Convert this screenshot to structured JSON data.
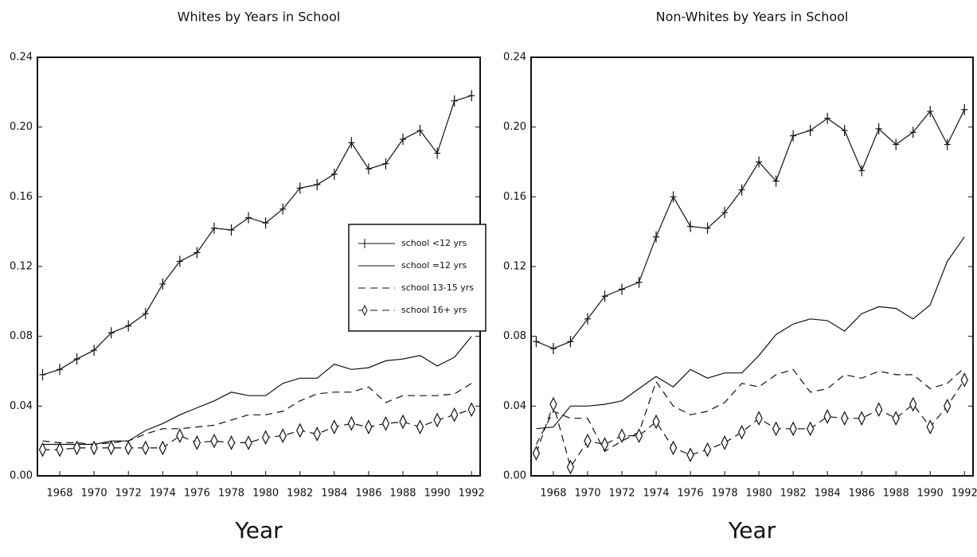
{
  "chart_data": [
    {
      "type": "line",
      "title": "Whites by Years in School",
      "x_label": "Year",
      "x": [
        1967,
        1968,
        1969,
        1970,
        1971,
        1972,
        1973,
        1974,
        1975,
        1976,
        1977,
        1978,
        1979,
        1980,
        1981,
        1982,
        1983,
        1984,
        1985,
        1986,
        1987,
        1988,
        1989,
        1990,
        1991,
        1992
      ],
      "xlim": [
        1966.7,
        1992.5
      ],
      "xticks": [
        1968,
        1970,
        1972,
        1974,
        1976,
        1978,
        1980,
        1982,
        1984,
        1986,
        1988,
        1990,
        1992
      ],
      "ylim": [
        0,
        0.24
      ],
      "yticks": [
        {
          "value": 0,
          "label": "0.00"
        },
        0.04,
        0.08,
        0.12,
        0.16,
        {
          "value": 0.2,
          "label": "0.20"
        },
        0.24
      ],
      "legend": "right",
      "series": [
        {
          "name": "school <12 yrs",
          "color": "#111111",
          "marker": "plus",
          "dash": "solid",
          "values": [
            0.058,
            0.061,
            0.067,
            0.072,
            0.082,
            0.086,
            0.093,
            0.11,
            0.123,
            0.128,
            0.142,
            0.141,
            0.148,
            0.145,
            0.153,
            0.165,
            0.167,
            0.173,
            0.191,
            0.176,
            0.179,
            0.193,
            0.198,
            0.185,
            0.215,
            0.218
          ]
        },
        {
          "name": "school =12 yrs",
          "color": "#111111",
          "marker": "none",
          "dash": "solid",
          "values": [
            0.018,
            0.018,
            0.018,
            0.018,
            0.02,
            0.02,
            0.026,
            0.03,
            0.035,
            0.039,
            0.043,
            0.048,
            0.046,
            0.046,
            0.053,
            0.056,
            0.056,
            0.064,
            0.061,
            0.062,
            0.066,
            0.067,
            0.069,
            0.063,
            0.068,
            0.08
          ]
        },
        {
          "name": "school 13-15 yrs",
          "color": "#111111",
          "marker": "none",
          "dash": "dashed",
          "values": [
            0.02,
            0.019,
            0.019,
            0.018,
            0.019,
            0.02,
            0.024,
            0.027,
            0.027,
            0.028,
            0.029,
            0.032,
            0.035,
            0.035,
            0.037,
            0.043,
            0.047,
            0.048,
            0.048,
            0.051,
            0.042,
            0.046,
            0.046,
            0.046,
            0.047,
            0.053
          ]
        },
        {
          "name": "school 16+ yrs",
          "color": "#111111",
          "marker": "diamond",
          "dash": "dashed",
          "values": [
            0.015,
            0.015,
            0.016,
            0.016,
            0.016,
            0.016,
            0.016,
            0.016,
            0.023,
            0.019,
            0.02,
            0.019,
            0.019,
            0.022,
            0.023,
            0.026,
            0.024,
            0.028,
            0.03,
            0.028,
            0.03,
            0.031,
            0.028,
            0.032,
            0.035,
            0.038
          ]
        }
      ]
    },
    {
      "type": "line",
      "title": "Non-Whites by Years in School",
      "x_label": "Year",
      "x": [
        1967,
        1968,
        1969,
        1970,
        1971,
        1972,
        1973,
        1974,
        1975,
        1976,
        1977,
        1978,
        1979,
        1980,
        1981,
        1982,
        1983,
        1984,
        1985,
        1986,
        1987,
        1988,
        1989,
        1990,
        1991,
        1992
      ],
      "xlim": [
        1966.7,
        1992.5
      ],
      "xticks": [
        1968,
        1970,
        1972,
        1974,
        1976,
        1978,
        1980,
        1982,
        1984,
        1986,
        1988,
        1990,
        1992
      ],
      "ylim": [
        0,
        0.24
      ],
      "yticks": [
        {
          "value": 0,
          "label": "0.00"
        },
        0.04,
        0.08,
        0.12,
        0.16,
        {
          "value": 0.2,
          "label": "0.20"
        },
        0.24
      ],
      "series": [
        {
          "color": "#111111",
          "marker": "plus",
          "dash": "solid",
          "values": [
            0.077,
            0.073,
            0.077,
            0.09,
            0.103,
            0.107,
            0.111,
            0.137,
            0.16,
            0.143,
            0.142,
            0.151,
            0.164,
            0.18,
            0.169,
            0.195,
            0.198,
            0.205,
            0.198,
            0.175,
            0.199,
            0.19,
            0.197,
            0.209,
            0.19,
            0.21
          ]
        },
        {
          "color": "#111111",
          "marker": "none",
          "dash": "solid",
          "values": [
            0.027,
            0.028,
            0.04,
            0.04,
            0.041,
            0.043,
            0.05,
            0.057,
            0.051,
            0.061,
            0.056,
            0.059,
            0.059,
            0.069,
            0.081,
            0.087,
            0.09,
            0.089,
            0.083,
            0.093,
            0.097,
            0.096,
            0.09,
            0.098,
            0.123,
            0.137
          ]
        },
        {
          "color": "#111111",
          "marker": "none",
          "dash": "dashed",
          "values": [
            0.018,
            0.037,
            0.033,
            0.033,
            0.014,
            0.02,
            0.025,
            0.054,
            0.04,
            0.035,
            0.037,
            0.042,
            0.053,
            0.051,
            0.058,
            0.061,
            0.048,
            0.05,
            0.058,
            0.056,
            0.06,
            0.058,
            0.058,
            0.05,
            0.053,
            0.062
          ]
        },
        {
          "color": "#111111",
          "marker": "diamond",
          "dash": "dashed",
          "values": [
            0.013,
            0.041,
            0.005,
            0.02,
            0.018,
            0.023,
            0.023,
            0.031,
            0.016,
            0.012,
            0.015,
            0.019,
            0.025,
            0.033,
            0.027,
            0.027,
            0.027,
            0.034,
            0.033,
            0.033,
            0.038,
            0.033,
            0.041,
            0.028,
            0.04,
            0.055
          ]
        }
      ]
    }
  ]
}
